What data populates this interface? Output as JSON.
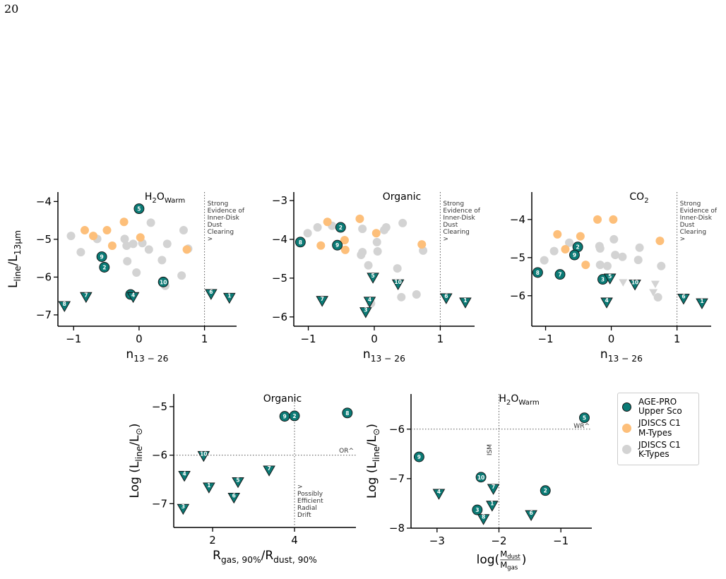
{
  "page_number": "20",
  "chart_data": [
    {
      "type": "scatter",
      "title": [
        {
          "text": "H"
        },
        {
          "text": "2",
          "pos": "sub"
        },
        {
          "text": "O"
        },
        {
          "text": "Warm",
          "pos": "sub"
        }
      ],
      "xlabel": [
        {
          "text": "n"
        },
        {
          "text": "13 − 26",
          "pos": "sub"
        }
      ],
      "ylabel": [
        {
          "text": "L"
        },
        {
          "text": "line",
          "pos": "sub"
        },
        {
          "text": "/L"
        },
        {
          "text": "13μm",
          "pos": "sub"
        }
      ],
      "xlim": [
        -1.24,
        1.49
      ],
      "ylim": [
        -7.3,
        -3.75
      ],
      "xticks": [
        {
          "value": -1,
          "label": "−1"
        },
        0,
        1
      ],
      "yticks": [
        {
          "value": -7,
          "label": "−7"
        },
        {
          "value": -6,
          "label": "−6"
        },
        {
          "value": -5,
          "label": "−5"
        },
        {
          "value": -4,
          "label": "−4"
        }
      ],
      "vline": {
        "value": 1,
        "text": "Strong\nEvidence of\nInner-Disk\nDust\nClearing\n>"
      },
      "series": [
        {
          "name": "AGE-PRO\nUpper Sco",
          "color": "#0b7a75",
          "labels": [
            "5",
            "9",
            "2",
            "10",
            "3",
            "4",
            "7",
            "8",
            "6",
            "1"
          ],
          "x": [
            0,
            -0.57,
            -0.53,
            0.37,
            -0.13,
            -0.09,
            -0.81,
            -1.14,
            1.1,
            1.38
          ],
          "values": [
            -4.19,
            -5.46,
            -5.74,
            -6.13,
            -6.46,
            -6.52,
            -6.52,
            -6.76,
            -6.44,
            -6.54
          ],
          "upper_limit": [
            false,
            false,
            false,
            false,
            false,
            true,
            true,
            true,
            true,
            true
          ]
        },
        {
          "name": "JDISCS C1\nM-Types",
          "color": "#fdbf7a",
          "x": [
            -0.83,
            -0.7,
            -0.49,
            -0.41,
            -0.23,
            0.02,
            0.73
          ],
          "values": [
            -4.76,
            -4.91,
            -4.76,
            -5.17,
            -4.54,
            -4.95,
            -5.27
          ]
        },
        {
          "name": "JDISCS C1\nK-Types",
          "color": "#d3d3d3",
          "x": [
            -1.04,
            -0.89,
            -0.64,
            -0.22,
            -0.19,
            -0.18,
            -0.09,
            -0.04,
            0.05,
            0.15,
            0.18,
            0.35,
            0.43,
            0.4,
            0.68,
            0.65,
            0.75
          ],
          "values": [
            -4.91,
            -5.34,
            -4.99,
            -4.99,
            -5.17,
            -5.58,
            -5.12,
            -5.88,
            -5.1,
            -5.27,
            -4.56,
            -5.55,
            -5.12,
            -6.23,
            -4.76,
            -5.96,
            -5.25
          ]
        }
      ]
    },
    {
      "type": "scatter",
      "title": [
        {
          "text": "Organic"
        }
      ],
      "xlabel": [
        {
          "text": "n"
        },
        {
          "text": "13 − 26",
          "pos": "sub"
        }
      ],
      "xlim": [
        -1.22,
        1.52
      ],
      "ylim": [
        -6.24,
        -2.78
      ],
      "xticks": [
        {
          "value": -1,
          "label": "−1"
        },
        0,
        1
      ],
      "yticks": [
        {
          "value": -6,
          "label": "−6"
        },
        {
          "value": -5,
          "label": "−5"
        },
        {
          "value": -4,
          "label": "−4"
        },
        {
          "value": -3,
          "label": "−3"
        }
      ],
      "vline": {
        "value": 1,
        "text": "Strong\nEvidence of\nInner-Disk\nDust\nClearing\n>"
      },
      "series": [
        {
          "color": "#0b7a75",
          "labels": [
            "2",
            "8",
            "9",
            "5",
            "10",
            "7",
            "4",
            "3",
            "6",
            "1"
          ],
          "x": [
            -0.51,
            -1.12,
            -0.56,
            -0.02,
            0.36,
            -0.79,
            -0.07,
            -0.13,
            1.09,
            1.38
          ],
          "values": [
            -3.69,
            -4.07,
            -4.15,
            -4.98,
            -5.15,
            -5.58,
            -5.6,
            -5.87,
            -5.51,
            -5.62
          ],
          "upper_limit": [
            false,
            false,
            false,
            true,
            true,
            true,
            true,
            true,
            true,
            true
          ]
        },
        {
          "color": "#fdbf7a",
          "x": [
            -0.71,
            -0.81,
            -0.45,
            -0.44,
            -0.22,
            0.03,
            0.72
          ],
          "values": [
            -3.55,
            -4.16,
            -4.02,
            -4.27,
            -3.47,
            -3.84,
            -4.13
          ]
        },
        {
          "color": "#d3d3d3",
          "x": [
            -1.01,
            -0.86,
            -0.64,
            -0.18,
            -0.2,
            -0.18,
            -0.09,
            0.05,
            0.04,
            0.15,
            0.18,
            0.35,
            0.41,
            0.43,
            0.64,
            0.74,
            -0.05
          ],
          "values": [
            -3.84,
            -3.69,
            -3.65,
            -4.33,
            -4.4,
            -3.73,
            -4.67,
            -4.31,
            -4.07,
            -3.76,
            -3.69,
            -4.75,
            -5.49,
            -3.58,
            -5.42,
            -4.29,
            -5.65
          ]
        }
      ]
    },
    {
      "type": "scatter",
      "title": [
        {
          "text": "CO"
        },
        {
          "text": "2",
          "pos": "sub"
        }
      ],
      "xlabel": [
        {
          "text": "n"
        },
        {
          "text": "13 − 26",
          "pos": "sub"
        }
      ],
      "xlim": [
        -1.21,
        1.52
      ],
      "ylim": [
        -6.8,
        -3.28
      ],
      "xticks": [
        {
          "value": -1,
          "label": "−1"
        },
        0,
        1
      ],
      "yticks": [
        {
          "value": -6,
          "label": "−6"
        },
        {
          "value": -5,
          "label": "−5"
        },
        {
          "value": -4,
          "label": "−4"
        }
      ],
      "vline": {
        "value": 1,
        "text": "Strong\nEvidence of\nInner-Disk\nDust\nClearing\n>"
      },
      "series": [
        {
          "color": "#0b7a75",
          "labels": [
            "2",
            "9",
            "8",
            "7",
            "3",
            "5",
            "10",
            "4",
            "6",
            "1"
          ],
          "x": [
            -0.51,
            -0.56,
            -1.12,
            -0.78,
            -0.13,
            -0.02,
            0.36,
            -0.07,
            1.1,
            1.38
          ],
          "values": [
            -4.72,
            -4.93,
            -5.39,
            -5.44,
            -5.57,
            -5.54,
            -5.7,
            -6.17,
            -6.07,
            -6.19
          ],
          "upper_limit": [
            false,
            false,
            false,
            false,
            false,
            true,
            true,
            true,
            true,
            true
          ]
        },
        {
          "color": "#fdbf7a",
          "x": [
            -0.82,
            -0.7,
            -0.47,
            -0.39,
            -0.21,
            0.03,
            0.74
          ],
          "values": [
            -4.39,
            -4.78,
            -4.44,
            -5.19,
            -4.0,
            -4.0,
            -4.56
          ]
        },
        {
          "color": "#d3d3d3",
          "x": [
            -1.02,
            -0.87,
            -0.64,
            -0.18,
            -0.17,
            -0.17,
            -0.06,
            0.04,
            0.06,
            0.17,
            0.41,
            0.43,
            0.71,
            0.76,
            0.18,
            0.67,
            0.64
          ],
          "values": [
            -5.07,
            -4.83,
            -4.61,
            -4.7,
            -4.76,
            -5.19,
            -5.22,
            -4.52,
            -4.93,
            -4.98,
            -5.06,
            -4.74,
            -6.04,
            -5.22,
            -5.65,
            -5.69,
            -5.91
          ],
          "upper_limit": [
            false,
            false,
            false,
            false,
            false,
            false,
            false,
            false,
            false,
            false,
            false,
            false,
            false,
            false,
            true,
            true,
            true
          ]
        }
      ]
    },
    {
      "type": "scatter",
      "title": [
        {
          "text": "Organic"
        }
      ],
      "xlabel": [
        {
          "text": "R"
        },
        {
          "text": "gas, 90%",
          "pos": "sub"
        },
        {
          "text": "/R"
        },
        {
          "text": "dust, 90%",
          "pos": "sub"
        }
      ],
      "ylabel": [
        {
          "text": "Log (L"
        },
        {
          "text": "line",
          "pos": "sub"
        },
        {
          "text": "/L"
        },
        {
          "text": "⊙",
          "pos": "sub"
        },
        {
          "text": ")"
        }
      ],
      "xlim": [
        1.05,
        5.5
      ],
      "ylim": [
        -7.49,
        -4.74
      ],
      "xticks": [
        2,
        4
      ],
      "yticks": [
        {
          "value": -7,
          "label": "−7"
        },
        {
          "value": -6,
          "label": "−6"
        },
        {
          "value": -5,
          "label": "−5"
        }
      ],
      "vline": {
        "value": 4,
        "text": ">\nPossibly\nEfficient\nRadial\nDrift"
      },
      "hline": {
        "value": -6,
        "text": "OR^"
      },
      "series": [
        {
          "color": "#0b7a75",
          "labels": [
            "9",
            "2",
            "8",
            "10",
            "4",
            "7",
            "1",
            "5",
            "6",
            "3"
          ],
          "x": [
            3.76,
            4.0,
            5.29,
            1.78,
            1.31,
            3.38,
            1.91,
            2.62,
            2.52,
            1.28
          ],
          "values": [
            -5.2,
            -5.19,
            -5.13,
            -6.01,
            -6.42,
            -6.31,
            -6.66,
            -6.55,
            -6.87,
            -7.1
          ],
          "upper_limit": [
            false,
            false,
            false,
            true,
            true,
            true,
            true,
            true,
            true,
            true
          ]
        }
      ]
    },
    {
      "type": "scatter",
      "title": [
        {
          "text": "H"
        },
        {
          "text": "2",
          "pos": "sub"
        },
        {
          "text": "O"
        },
        {
          "text": "Warm",
          "pos": "sub"
        }
      ],
      "xlabel": [
        {
          "text": "log("
        },
        {
          "text": "M",
          "pos": "num"
        },
        {
          "text": "dust",
          "pos": "num-sub"
        },
        {
          "text": "M",
          "pos": "den"
        },
        {
          "text": "gas",
          "pos": "den-sub"
        },
        {
          "text": ")"
        }
      ],
      "ylabel": [
        {
          "text": "Log (L"
        },
        {
          "text": "line",
          "pos": "sub"
        },
        {
          "text": "/L"
        },
        {
          "text": "⊙",
          "pos": "sub"
        },
        {
          "text": ")"
        }
      ],
      "xlim": [
        -3.42,
        -0.5
      ],
      "ylim": [
        -8.0,
        -5.29
      ],
      "xticks": [
        {
          "value": -3,
          "label": "−3"
        },
        {
          "value": -2,
          "label": "−2"
        },
        {
          "value": -1,
          "label": "−1"
        }
      ],
      "yticks": [
        {
          "value": -8,
          "label": "−8"
        },
        {
          "value": -7,
          "label": "−7"
        },
        {
          "value": -6,
          "label": "−6"
        }
      ],
      "vline": {
        "value": -2,
        "text": "ISM"
      },
      "hline": {
        "value": -6,
        "text": "WR^"
      },
      "series": [
        {
          "color": "#0b7a75",
          "labels": [
            "5",
            "9",
            "10",
            "2",
            "7",
            "4",
            "1",
            "3",
            "8",
            "6"
          ],
          "x": [
            -0.62,
            -3.29,
            -2.29,
            -1.25,
            -2.09,
            -2.97,
            -2.11,
            -2.35,
            -2.25,
            -1.48
          ],
          "values": [
            -5.77,
            -6.56,
            -6.97,
            -7.24,
            -7.2,
            -7.3,
            -7.54,
            -7.63,
            -7.81,
            -7.73
          ],
          "upper_limit": [
            false,
            false,
            false,
            false,
            true,
            true,
            true,
            false,
            true,
            true
          ]
        }
      ]
    }
  ]
}
